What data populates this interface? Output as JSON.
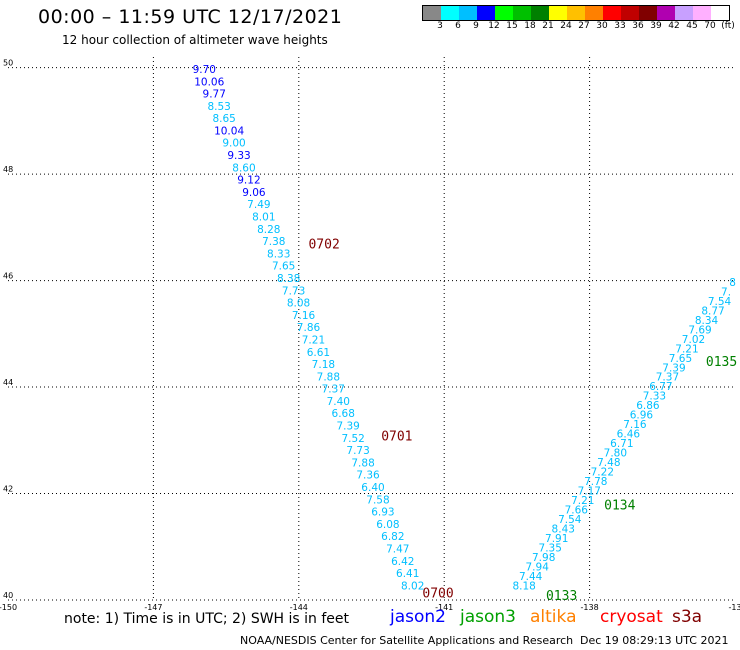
{
  "header": {
    "title": "00:00 – 11:59 UTC 12/17/2021",
    "subtitle": "12 hour collection of altimeter wave heights"
  },
  "color_scale": {
    "colors": [
      "#888888",
      "#00ffff",
      "#00bfff",
      "#0000ff",
      "#00ff00",
      "#00c000",
      "#008000",
      "#ffff00",
      "#ffc000",
      "#ff8000",
      "#ff0000",
      "#c00000",
      "#800000",
      "#b000b0",
      "#c8a0ff",
      "#ffb0ff",
      "#ffffff"
    ],
    "labels": [
      "3",
      "6",
      "9",
      "12",
      "15",
      "18",
      "21",
      "24",
      "27",
      "30",
      "33",
      "36",
      "39",
      "42",
      "45",
      "70"
    ],
    "unit": "(ft)"
  },
  "map": {
    "lon_ticks": [
      {
        "label": "-150",
        "value": -150
      },
      {
        "label": "-147",
        "value": -147
      },
      {
        "label": "-144",
        "value": -144
      },
      {
        "label": "-141",
        "value": -141
      },
      {
        "label": "-138",
        "value": -138
      },
      {
        "label": "-13",
        "value": -135
      }
    ],
    "lat_ticks": [
      {
        "label": "40",
        "value": 40
      },
      {
        "label": "42",
        "value": 42
      },
      {
        "label": "44",
        "value": 44
      },
      {
        "label": "46",
        "value": 46
      },
      {
        "label": "48",
        "value": 48
      },
      {
        "label": "50",
        "value": 50
      }
    ],
    "lon_range": [
      -150,
      -135
    ],
    "lat_range": [
      40,
      50.2
    ],
    "track_west": {
      "lon_start": -145.95,
      "lat_start": 49.9,
      "lon_end": -141.65,
      "lat_end": 40.2,
      "values": [
        "9.70",
        "10.06",
        "9.77",
        "8.53",
        "8.65",
        "10.04",
        "9.00",
        "9.33",
        "8.60",
        "9.12",
        "9.06",
        "7.49",
        "8.01",
        "8.28",
        "7.38",
        "8.33",
        "7.65",
        "8.38",
        "7.73",
        "8.08",
        "7.16",
        "7.86",
        "7.21",
        "6.61",
        "7.18",
        "7.88",
        "7.37",
        "7.40",
        "6.68",
        "7.39",
        "7.52",
        "7.73",
        "7.88",
        "7.36",
        "6.40",
        "7.58",
        "6.93",
        "6.08",
        "6.82",
        "7.47",
        "6.42",
        "6.41",
        "8.02"
      ],
      "colors": [
        "#0000ff",
        "#0000ff",
        "#0000ff",
        "#00bfff",
        "#00bfff",
        "#0000ff",
        "#00bfff",
        "#0000ff",
        "#00bfff",
        "#0000ff",
        "#0000ff",
        "#00bfff",
        "#00bfff",
        "#00bfff",
        "#00bfff",
        "#00bfff",
        "#00bfff",
        "#00bfff",
        "#00bfff",
        "#00bfff",
        "#00bfff",
        "#00bfff",
        "#00bfff",
        "#00bfff",
        "#00bfff",
        "#00bfff",
        "#00bfff",
        "#00bfff",
        "#00bfff",
        "#00bfff",
        "#00bfff",
        "#00bfff",
        "#00bfff",
        "#00bfff",
        "#00bfff",
        "#00bfff",
        "#00bfff",
        "#00bfff",
        "#00bfff",
        "#00bfff",
        "#00bfff",
        "#00bfff",
        "#00bfff"
      ]
    },
    "track_east": {
      "lon_start": -139.35,
      "lat_start": 40.2,
      "lon_end": -135.05,
      "lat_end": 45.9,
      "values": [
        "8.18",
        "7.44",
        "7.94",
        "7.98",
        "7.35",
        "7.91",
        "8.43",
        "7.54",
        "7.66",
        "7.21",
        "7.17",
        "7.78",
        "7.22",
        "7.48",
        "7.80",
        "6.71",
        "6.46",
        "7.16",
        "6.96",
        "6.86",
        "7.33",
        "6.77",
        "7.37",
        "7.39",
        "7.65",
        "7.21",
        "7.02",
        "7.69",
        "8.34",
        "8.77",
        "7.54",
        "7.",
        "8"
      ],
      "color": "#00bfff"
    },
    "time_labels": [
      {
        "text": "0702",
        "lon": -143.8,
        "lat": 46.6,
        "color": "#800000"
      },
      {
        "text": "0701",
        "lon": -142.3,
        "lat": 43.0,
        "color": "#800000"
      },
      {
        "text": "0700",
        "lon": -141.45,
        "lat": 40.05,
        "color": "#800000"
      },
      {
        "text": "0133",
        "lon": -138.9,
        "lat": 40.0,
        "color": "#008000"
      },
      {
        "text": "0134",
        "lon": -137.7,
        "lat": 41.7,
        "color": "#008000"
      },
      {
        "text": "0135",
        "lon": -135.6,
        "lat": 44.4,
        "color": "#008000"
      }
    ]
  },
  "footer": {
    "note": "note: 1) Time is in UTC; 2) SWH is in feet",
    "satellites": [
      {
        "name": "jason2",
        "color": "#0000ff"
      },
      {
        "name": "jason3",
        "color": "#00a000"
      },
      {
        "name": "altika",
        "color": "#ff8000"
      },
      {
        "name": "cryosat",
        "color": "#ff0000"
      },
      {
        "name": "s3a",
        "color": "#800000"
      }
    ],
    "credit": "NOAA/NESDIS Center for Satellite Applications and Research",
    "timestamp": "Dec 19 08:29:13 UTC 2021"
  }
}
